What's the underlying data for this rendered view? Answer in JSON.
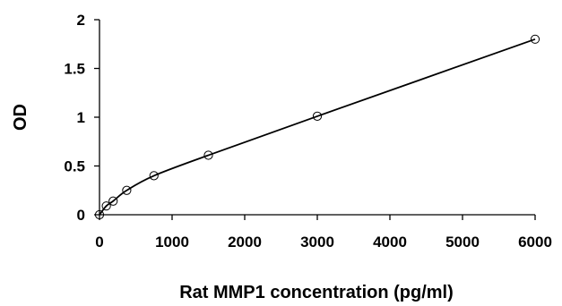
{
  "chart_data": {
    "type": "scatter",
    "title": "",
    "xlabel": "Rat MMP1 concentration (pg/ml)",
    "ylabel": "OD",
    "xlim": [
      0,
      6000
    ],
    "ylim": [
      0,
      2
    ],
    "xticks": [
      0,
      1000,
      2000,
      3000,
      4000,
      5000,
      6000
    ],
    "yticks": [
      0,
      0.5,
      1,
      1.5,
      2
    ],
    "xtick_labels": [
      "0",
      "1000",
      "2000",
      "3000",
      "4000",
      "5000",
      "6000"
    ],
    "ytick_labels": [
      "0",
      "0.5",
      "1",
      "1.5",
      "2"
    ],
    "grid": false,
    "legend": "none",
    "series": [
      {
        "marker": "open-circle",
        "trendline": "smooth",
        "x": [
          0,
          94,
          188,
          375,
          750,
          1500,
          3000,
          6000
        ],
        "y": [
          0.0,
          0.09,
          0.14,
          0.25,
          0.4,
          0.61,
          1.01,
          1.8
        ]
      }
    ]
  }
}
